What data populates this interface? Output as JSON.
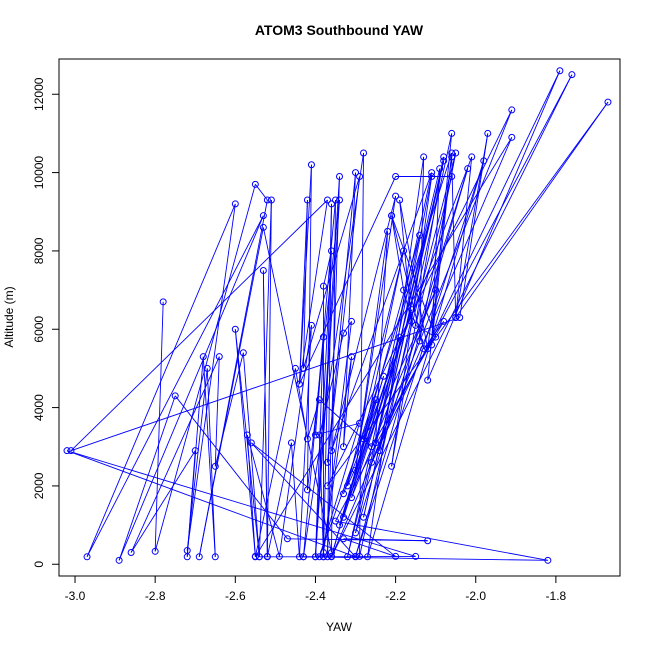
{
  "chart_data": {
    "type": "line",
    "title": "ATOM3 Southbound YAW",
    "xlabel": "YAW",
    "ylabel": "Altitude (m)",
    "xlim": [
      -3.04,
      -1.64
    ],
    "ylim": [
      -300,
      12900
    ],
    "x_ticks": [
      -3.0,
      -2.8,
      -2.6,
      -2.4,
      -2.2,
      -2.0,
      -1.8
    ],
    "x_tick_labels": [
      "-3.0",
      "-2.8",
      "-2.6",
      "-2.4",
      "-2.2",
      "-2.0",
      "-1.8"
    ],
    "y_ticks": [
      0,
      2000,
      4000,
      6000,
      8000,
      10000,
      12000
    ],
    "y_tick_labels": [
      "0",
      "2000",
      "4000",
      "6000",
      "8000",
      "10000",
      "12000"
    ],
    "grid": false,
    "legend": "none",
    "line_color": "#0000ff",
    "series": [
      {
        "points": [
          [
            -2.78,
            6700
          ],
          [
            -2.8,
            330
          ],
          [
            -2.55,
            9700
          ],
          [
            -2.52,
            9300
          ],
          [
            -2.69,
            190
          ],
          [
            -2.53,
            8600
          ],
          [
            -2.36,
            300
          ],
          [
            -2.35,
            9300
          ],
          [
            -2.43,
            190
          ],
          [
            -2.28,
            10500
          ],
          [
            -2.29,
            200
          ],
          [
            -2.06,
            11000
          ],
          [
            -2.12,
            4700
          ],
          [
            -1.79,
            12600
          ],
          [
            -2.26,
            2600
          ],
          [
            -1.91,
            11600
          ],
          [
            -2.37,
            2000
          ],
          [
            -1.67,
            11800
          ],
          [
            -2.05,
            6300
          ],
          [
            -2.01,
            10400
          ],
          [
            -2.33,
            1800
          ],
          [
            -2.06,
            10500
          ],
          [
            -2.11,
            5600
          ],
          [
            -2.09,
            10100
          ],
          [
            -2.3,
            800
          ],
          [
            -2.02,
            10100
          ],
          [
            -2.3,
            200
          ],
          [
            -1.98,
            10300
          ],
          [
            -2.27,
            190
          ],
          [
            -2.13,
            10400
          ],
          [
            -2.14,
            5700
          ],
          [
            -2.05,
            10500
          ],
          [
            -2.24,
            2900
          ],
          [
            -2.11,
            9900
          ],
          [
            -2.21,
            2500
          ],
          [
            -2.08,
            10400
          ],
          [
            -2.28,
            1200
          ],
          [
            -2.08,
            10300
          ],
          [
            -2.32,
            190
          ],
          [
            -2.11,
            10000
          ],
          [
            -2.36,
            2900
          ],
          [
            -2.2,
            9400
          ],
          [
            -2.3,
            2400
          ],
          [
            -2.22,
            8500
          ],
          [
            -2.25,
            3100
          ],
          [
            -2.14,
            8400
          ],
          [
            -2.28,
            3200
          ],
          [
            -2.18,
            8000
          ],
          [
            -2.32,
            2000
          ],
          [
            -2.1,
            7000
          ],
          [
            -2.31,
            1700
          ],
          [
            -2.16,
            6500
          ],
          [
            -2.33,
            1200
          ],
          [
            -2.19,
            5800
          ],
          [
            -2.34,
            1000
          ],
          [
            -2.23,
            4800
          ],
          [
            -2.36,
            200
          ],
          [
            -2.25,
            4200
          ],
          [
            -2.39,
            190
          ],
          [
            -2.29,
            3600
          ],
          [
            -2.4,
            3300
          ],
          [
            -2.38,
            5800
          ],
          [
            -2.4,
            190
          ],
          [
            -2.36,
            8000
          ],
          [
            -2.38,
            7100
          ],
          [
            -2.38,
            190
          ],
          [
            -2.36,
            9200
          ],
          [
            -2.37,
            190
          ],
          [
            -2.34,
            9900
          ],
          [
            -2.4,
            190
          ],
          [
            -2.34,
            9300
          ],
          [
            -2.42,
            1900
          ],
          [
            -2.41,
            10200
          ],
          [
            -2.44,
            4600
          ],
          [
            -2.42,
            9300
          ],
          [
            -2.43,
            5000
          ],
          [
            -2.29,
            9900
          ],
          [
            -2.37,
            2600
          ],
          [
            -2.3,
            10000
          ],
          [
            -2.33,
            3000
          ],
          [
            -2.31,
            5300
          ],
          [
            -2.38,
            300
          ],
          [
            -2.31,
            6200
          ],
          [
            -2.33,
            5900
          ],
          [
            -2.39,
            3300
          ],
          [
            -2.38,
            190
          ],
          [
            -2.54,
            190
          ],
          [
            -2.51,
            9300
          ],
          [
            -2.52,
            190
          ],
          [
            -2.53,
            7500
          ],
          [
            -2.52,
            200
          ],
          [
            -2.46,
            3100
          ],
          [
            -2.44,
            190
          ],
          [
            -2.41,
            6100
          ],
          [
            -2.49,
            200
          ],
          [
            -2.57,
            3300
          ],
          [
            -2.55,
            200
          ],
          [
            -2.6,
            6000
          ],
          [
            -2.54,
            190
          ],
          [
            -2.58,
            5400
          ],
          [
            -2.65,
            2500
          ],
          [
            -2.64,
            5300
          ],
          [
            -2.86,
            300
          ],
          [
            -2.7,
            2900
          ],
          [
            -2.72,
            190
          ],
          [
            -2.68,
            5300
          ],
          [
            -2.65,
            190
          ],
          [
            -2.67,
            5000
          ],
          [
            -2.72,
            350
          ],
          [
            -2.6,
            9200
          ],
          [
            -2.97,
            190
          ],
          [
            -2.53,
            8900
          ],
          [
            -2.89,
            100
          ],
          [
            -2.75,
            4300
          ],
          [
            -2.47,
            650
          ],
          [
            -2.12,
            600
          ],
          [
            -2.33,
            650
          ],
          [
            -2.2,
            200
          ],
          [
            -2.56,
            3100
          ],
          [
            -2.3,
            190
          ],
          [
            -3.02,
            2900
          ],
          [
            -2.15,
            200
          ],
          [
            -2.43,
            190
          ],
          [
            -1.82,
            100
          ],
          [
            -2.35,
            1100
          ],
          [
            -1.76,
            12500
          ],
          [
            -2.36,
            190
          ],
          [
            -1.91,
            10900
          ],
          [
            -2.55,
            190
          ],
          [
            -2.45,
            5000
          ],
          [
            -2.42,
            3200
          ],
          [
            -2.39,
            4200
          ],
          [
            -2.26,
            3000
          ],
          [
            -2.08,
            6200
          ],
          [
            -2.13,
            5500
          ],
          [
            -2.21,
            8900
          ],
          [
            -2.18,
            7000
          ],
          [
            -2.16,
            6200
          ],
          [
            -2.19,
            9300
          ],
          [
            -2.12,
            5500
          ],
          [
            -2.06,
            10400
          ],
          [
            -2.05,
            6300
          ],
          [
            -1.97,
            11000
          ],
          [
            -2.04,
            6300
          ],
          [
            -3.01,
            2900
          ],
          [
            -2.37,
            9300
          ],
          [
            -2.44,
            4600
          ],
          [
            -2.2,
            9900
          ],
          [
            -2.06,
            9900
          ],
          [
            -2.15,
            6100
          ],
          [
            -2.1,
            5800
          ],
          [
            -2.21,
            8900
          ]
        ]
      }
    ]
  }
}
